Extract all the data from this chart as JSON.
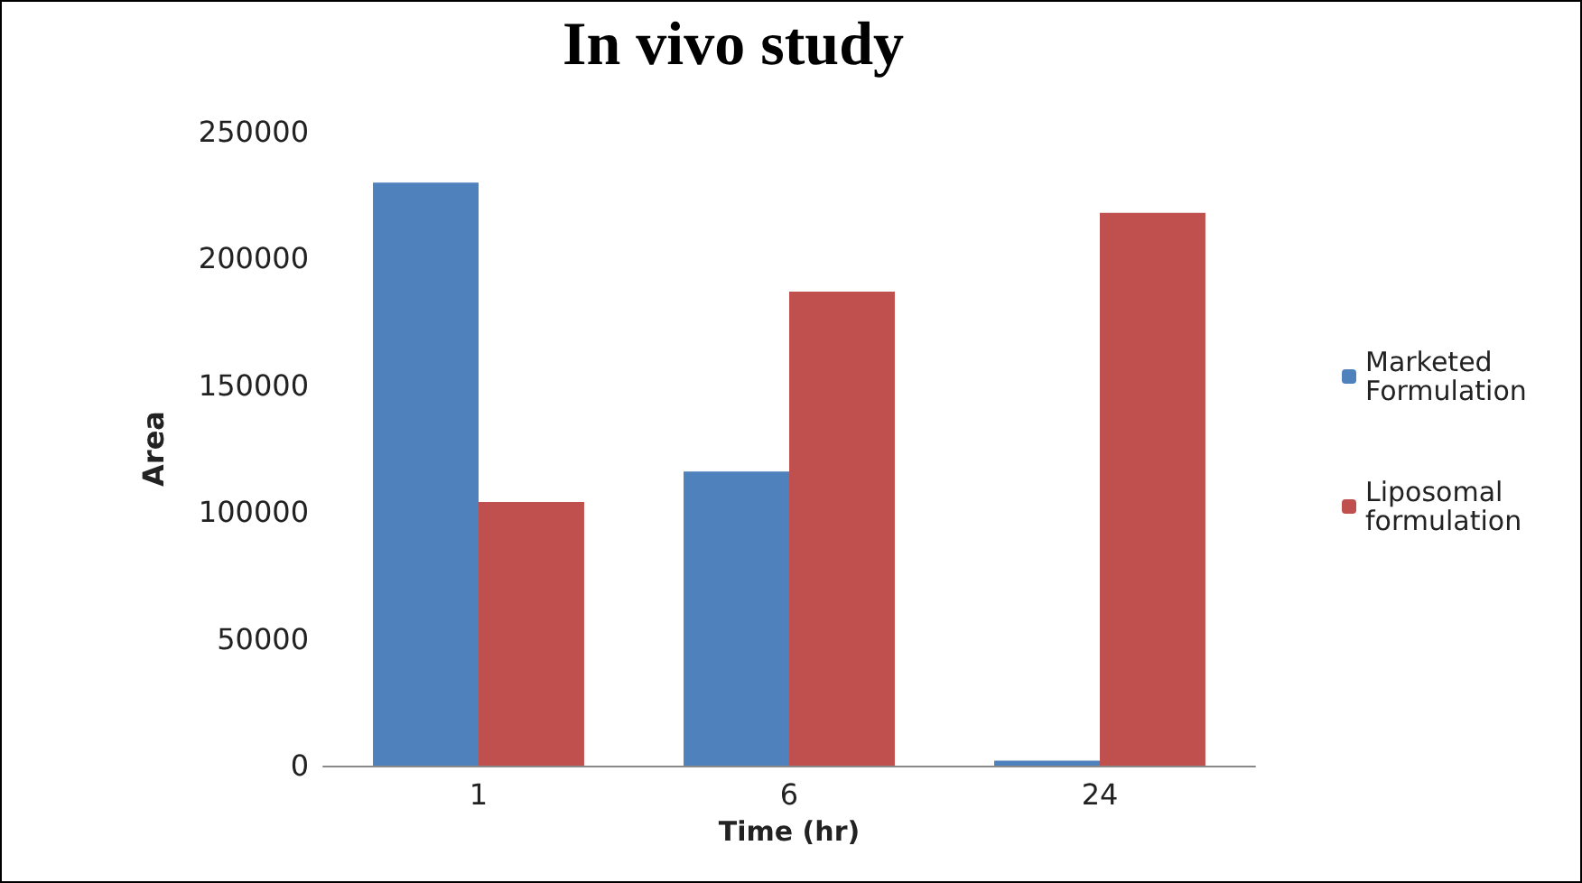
{
  "chart_data": {
    "type": "bar",
    "title": "In vivo study",
    "xlabel": "Time (hr)",
    "ylabel": "Area",
    "categories": [
      "1",
      "6",
      "24"
    ],
    "series": [
      {
        "name": "Marketed Formulation",
        "color": "#4f81bd",
        "values": [
          230000,
          116000,
          2000
        ]
      },
      {
        "name": "Liposomal formulation",
        "color": "#c0504d",
        "values": [
          104000,
          187000,
          218000
        ]
      }
    ],
    "ylim": [
      0,
      250000
    ],
    "yticks": [
      0,
      50000,
      100000,
      150000,
      200000,
      250000
    ],
    "grid": false,
    "legend": "right"
  }
}
